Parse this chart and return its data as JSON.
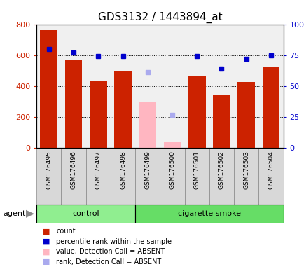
{
  "title": "GDS3132 / 1443894_at",
  "samples": [
    "GSM176495",
    "GSM176496",
    "GSM176497",
    "GSM176498",
    "GSM176499",
    "GSM176500",
    "GSM176501",
    "GSM176502",
    "GSM176503",
    "GSM176504"
  ],
  "counts": [
    760,
    570,
    435,
    495,
    null,
    null,
    465,
    340,
    425,
    520
  ],
  "absent_values": [
    null,
    null,
    null,
    null,
    300,
    40,
    null,
    null,
    null,
    null
  ],
  "percentile_ranks": [
    80,
    77,
    74,
    74,
    null,
    null,
    74,
    64,
    72,
    75
  ],
  "absent_ranks": [
    null,
    null,
    null,
    null,
    61,
    27,
    null,
    null,
    null,
    null
  ],
  "groups": [
    "control",
    "control",
    "control",
    "control",
    "cigarette smoke",
    "cigarette smoke",
    "cigarette smoke",
    "cigarette smoke",
    "cigarette smoke",
    "cigarette smoke"
  ],
  "group_colors": {
    "control": "#90EE90",
    "cigarette smoke": "#66DD66"
  },
  "bar_color_present": "#CC2200",
  "bar_color_absent": "#FFB6C1",
  "dot_color_present": "#0000CC",
  "dot_color_absent": "#AAAAEE",
  "ylim_left": [
    0,
    800
  ],
  "ylim_right": [
    0,
    100
  ],
  "yticks_left": [
    0,
    200,
    400,
    600,
    800
  ],
  "yticks_right": [
    0,
    25,
    50,
    75,
    100
  ],
  "ytick_labels_right": [
    "0",
    "25",
    "50",
    "75",
    "100%"
  ],
  "plot_bg": "#f0f0f0",
  "sample_bg": "#d8d8d8",
  "grid_dotted_values": [
    200,
    400,
    600
  ],
  "title_fontsize": 11,
  "agent_label": "agent"
}
